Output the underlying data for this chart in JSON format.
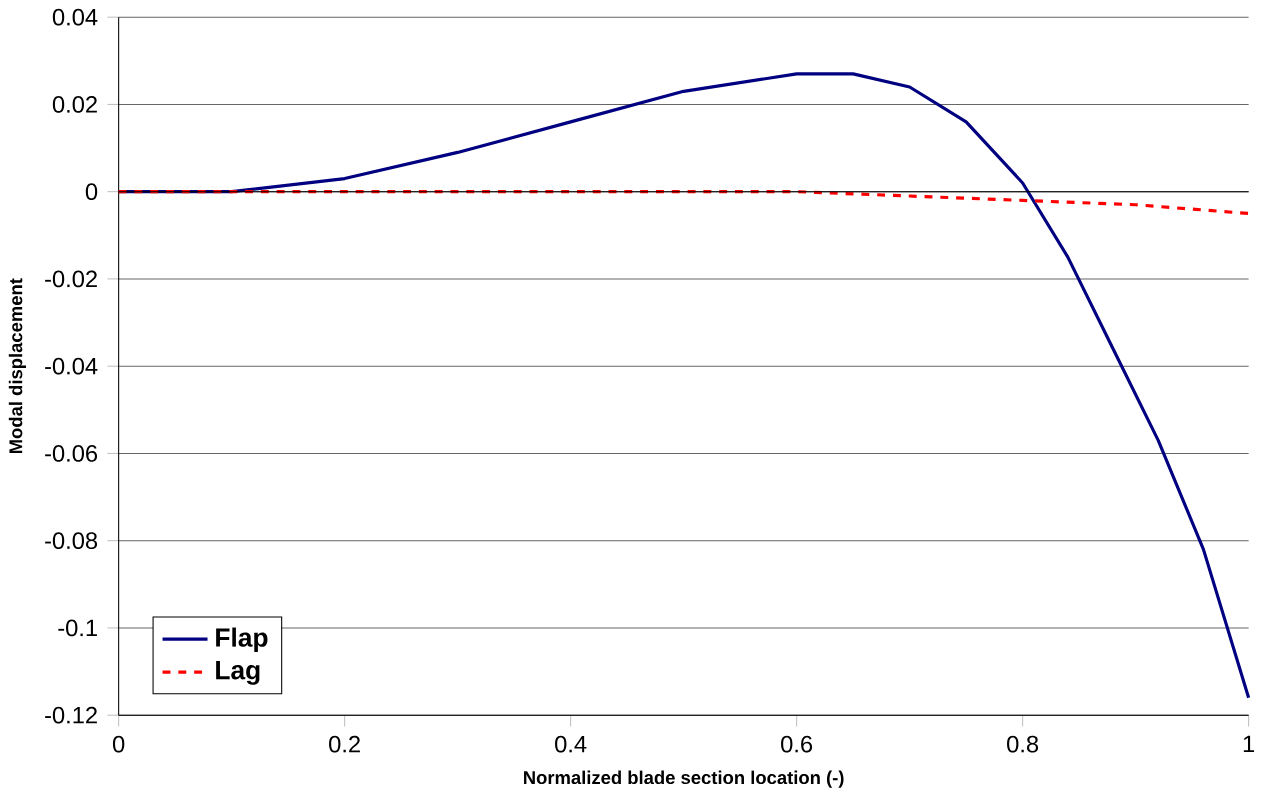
{
  "chart_data": {
    "type": "line",
    "xlabel": "Normalized blade section location  (-)",
    "ylabel": "Modal displacement",
    "xlim": [
      0,
      1
    ],
    "xticks": [
      0,
      0.2,
      0.4,
      0.6,
      0.8,
      1
    ],
    "ylim": [
      -0.12,
      0.04
    ],
    "yticks": [
      -0.12,
      -0.1,
      -0.08,
      -0.06,
      -0.04,
      -0.02,
      0,
      0.02,
      0.04
    ],
    "grid": "y",
    "legend": "bottom left",
    "series": [
      {
        "name": "Flap",
        "color": "#000080",
        "line_style": "solid",
        "x": [
          0,
          0.1,
          0.2,
          0.3,
          0.4,
          0.5,
          0.6,
          0.65,
          0.7,
          0.75,
          0.8,
          0.84,
          0.88,
          0.92,
          0.96,
          1.0
        ],
        "values": [
          0,
          0,
          0.003,
          0.009,
          0.016,
          0.023,
          0.027,
          0.027,
          0.024,
          0.016,
          0.002,
          -0.015,
          -0.036,
          -0.057,
          -0.082,
          -0.116
        ]
      },
      {
        "name": "Lag",
        "color": "#ff0000",
        "line_style": "dashed",
        "x": [
          0,
          0.2,
          0.4,
          0.6,
          0.7,
          0.8,
          0.9,
          1.0
        ],
        "values": [
          0,
          0,
          0,
          0,
          -0.001,
          -0.002,
          -0.003,
          -0.005
        ]
      }
    ]
  }
}
